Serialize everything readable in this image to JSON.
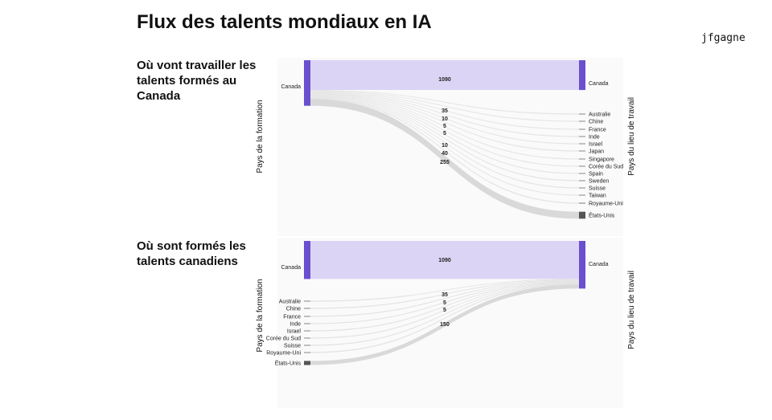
{
  "title": "Flux des talents mondiaux en IA",
  "brand": "jfgagne",
  "colors": {
    "canada": "#6a4fcf",
    "canada_flow": "#dcd4f5",
    "us": "#555555",
    "us_flow": "#d9d9d9",
    "minor": "#999999"
  },
  "chart_data": [
    {
      "type": "sankey",
      "subtitle": "Où vont travailler les talents formés au Canada",
      "left_axis_label": "Pays de la formation",
      "right_axis_label": "Pays du lieu de travail",
      "source": "Canada",
      "targets": [
        "Canada",
        "Australie",
        "Chine",
        "France",
        "Inde",
        "Israel",
        "Japan",
        "Singapore",
        "Corée du Sud",
        "Spain",
        "Sweden",
        "Suisse",
        "Taiwan",
        "Royaume-Uni",
        "États-Unis"
      ],
      "flow_labels": [
        "1090",
        "35",
        "10",
        "5",
        "5",
        "10",
        "40",
        "255"
      ],
      "flows": [
        {
          "from": "Canada",
          "to": "Canada",
          "value": 1090
        },
        {
          "from": "Canada",
          "to": "Australie",
          "value": 5
        },
        {
          "from": "Canada",
          "to": "Chine",
          "value": 10
        },
        {
          "from": "Canada",
          "to": "France",
          "value": 5
        },
        {
          "from": "Canada",
          "to": "Inde",
          "value": 5
        },
        {
          "from": "Canada",
          "to": "Israel",
          "value": 5
        },
        {
          "from": "Canada",
          "to": "Japan",
          "value": 5
        },
        {
          "from": "Canada",
          "to": "Singapore",
          "value": 5
        },
        {
          "from": "Canada",
          "to": "Corée du Sud",
          "value": 5
        },
        {
          "from": "Canada",
          "to": "Spain",
          "value": 5
        },
        {
          "from": "Canada",
          "to": "Sweden",
          "value": 5
        },
        {
          "from": "Canada",
          "to": "Suisse",
          "value": 5
        },
        {
          "from": "Canada",
          "to": "Taiwan",
          "value": 5
        },
        {
          "from": "Canada",
          "to": "Royaume-Uni",
          "value": 40
        },
        {
          "from": "Canada",
          "to": "États-Unis",
          "value": 255
        }
      ]
    },
    {
      "type": "sankey",
      "subtitle": "Où sont formés les talents canadiens",
      "left_axis_label": "Pays de la formation",
      "right_axis_label": "Pays du lieu de travail",
      "target": "Canada",
      "sources": [
        "Canada",
        "Australie",
        "Chine",
        "France",
        "Inde",
        "Israel",
        "Corée du Sud",
        "Suisse",
        "Royaume-Uni",
        "États-Unis"
      ],
      "flow_labels": [
        "1090",
        "35",
        "5",
        "5",
        "150"
      ],
      "flows": [
        {
          "from": "Canada",
          "to": "Canada",
          "value": 1090
        },
        {
          "from": "Australie",
          "to": "Canada",
          "value": 5
        },
        {
          "from": "Chine",
          "to": "Canada",
          "value": 10
        },
        {
          "from": "France",
          "to": "Canada",
          "value": 5
        },
        {
          "from": "Inde",
          "to": "Canada",
          "value": 5
        },
        {
          "from": "Israel",
          "to": "Canada",
          "value": 5
        },
        {
          "from": "Corée du Sud",
          "to": "Canada",
          "value": 5
        },
        {
          "from": "Suisse",
          "to": "Canada",
          "value": 5
        },
        {
          "from": "Royaume-Uni",
          "to": "Canada",
          "value": 35
        },
        {
          "from": "États-Unis",
          "to": "Canada",
          "value": 150
        }
      ]
    }
  ]
}
